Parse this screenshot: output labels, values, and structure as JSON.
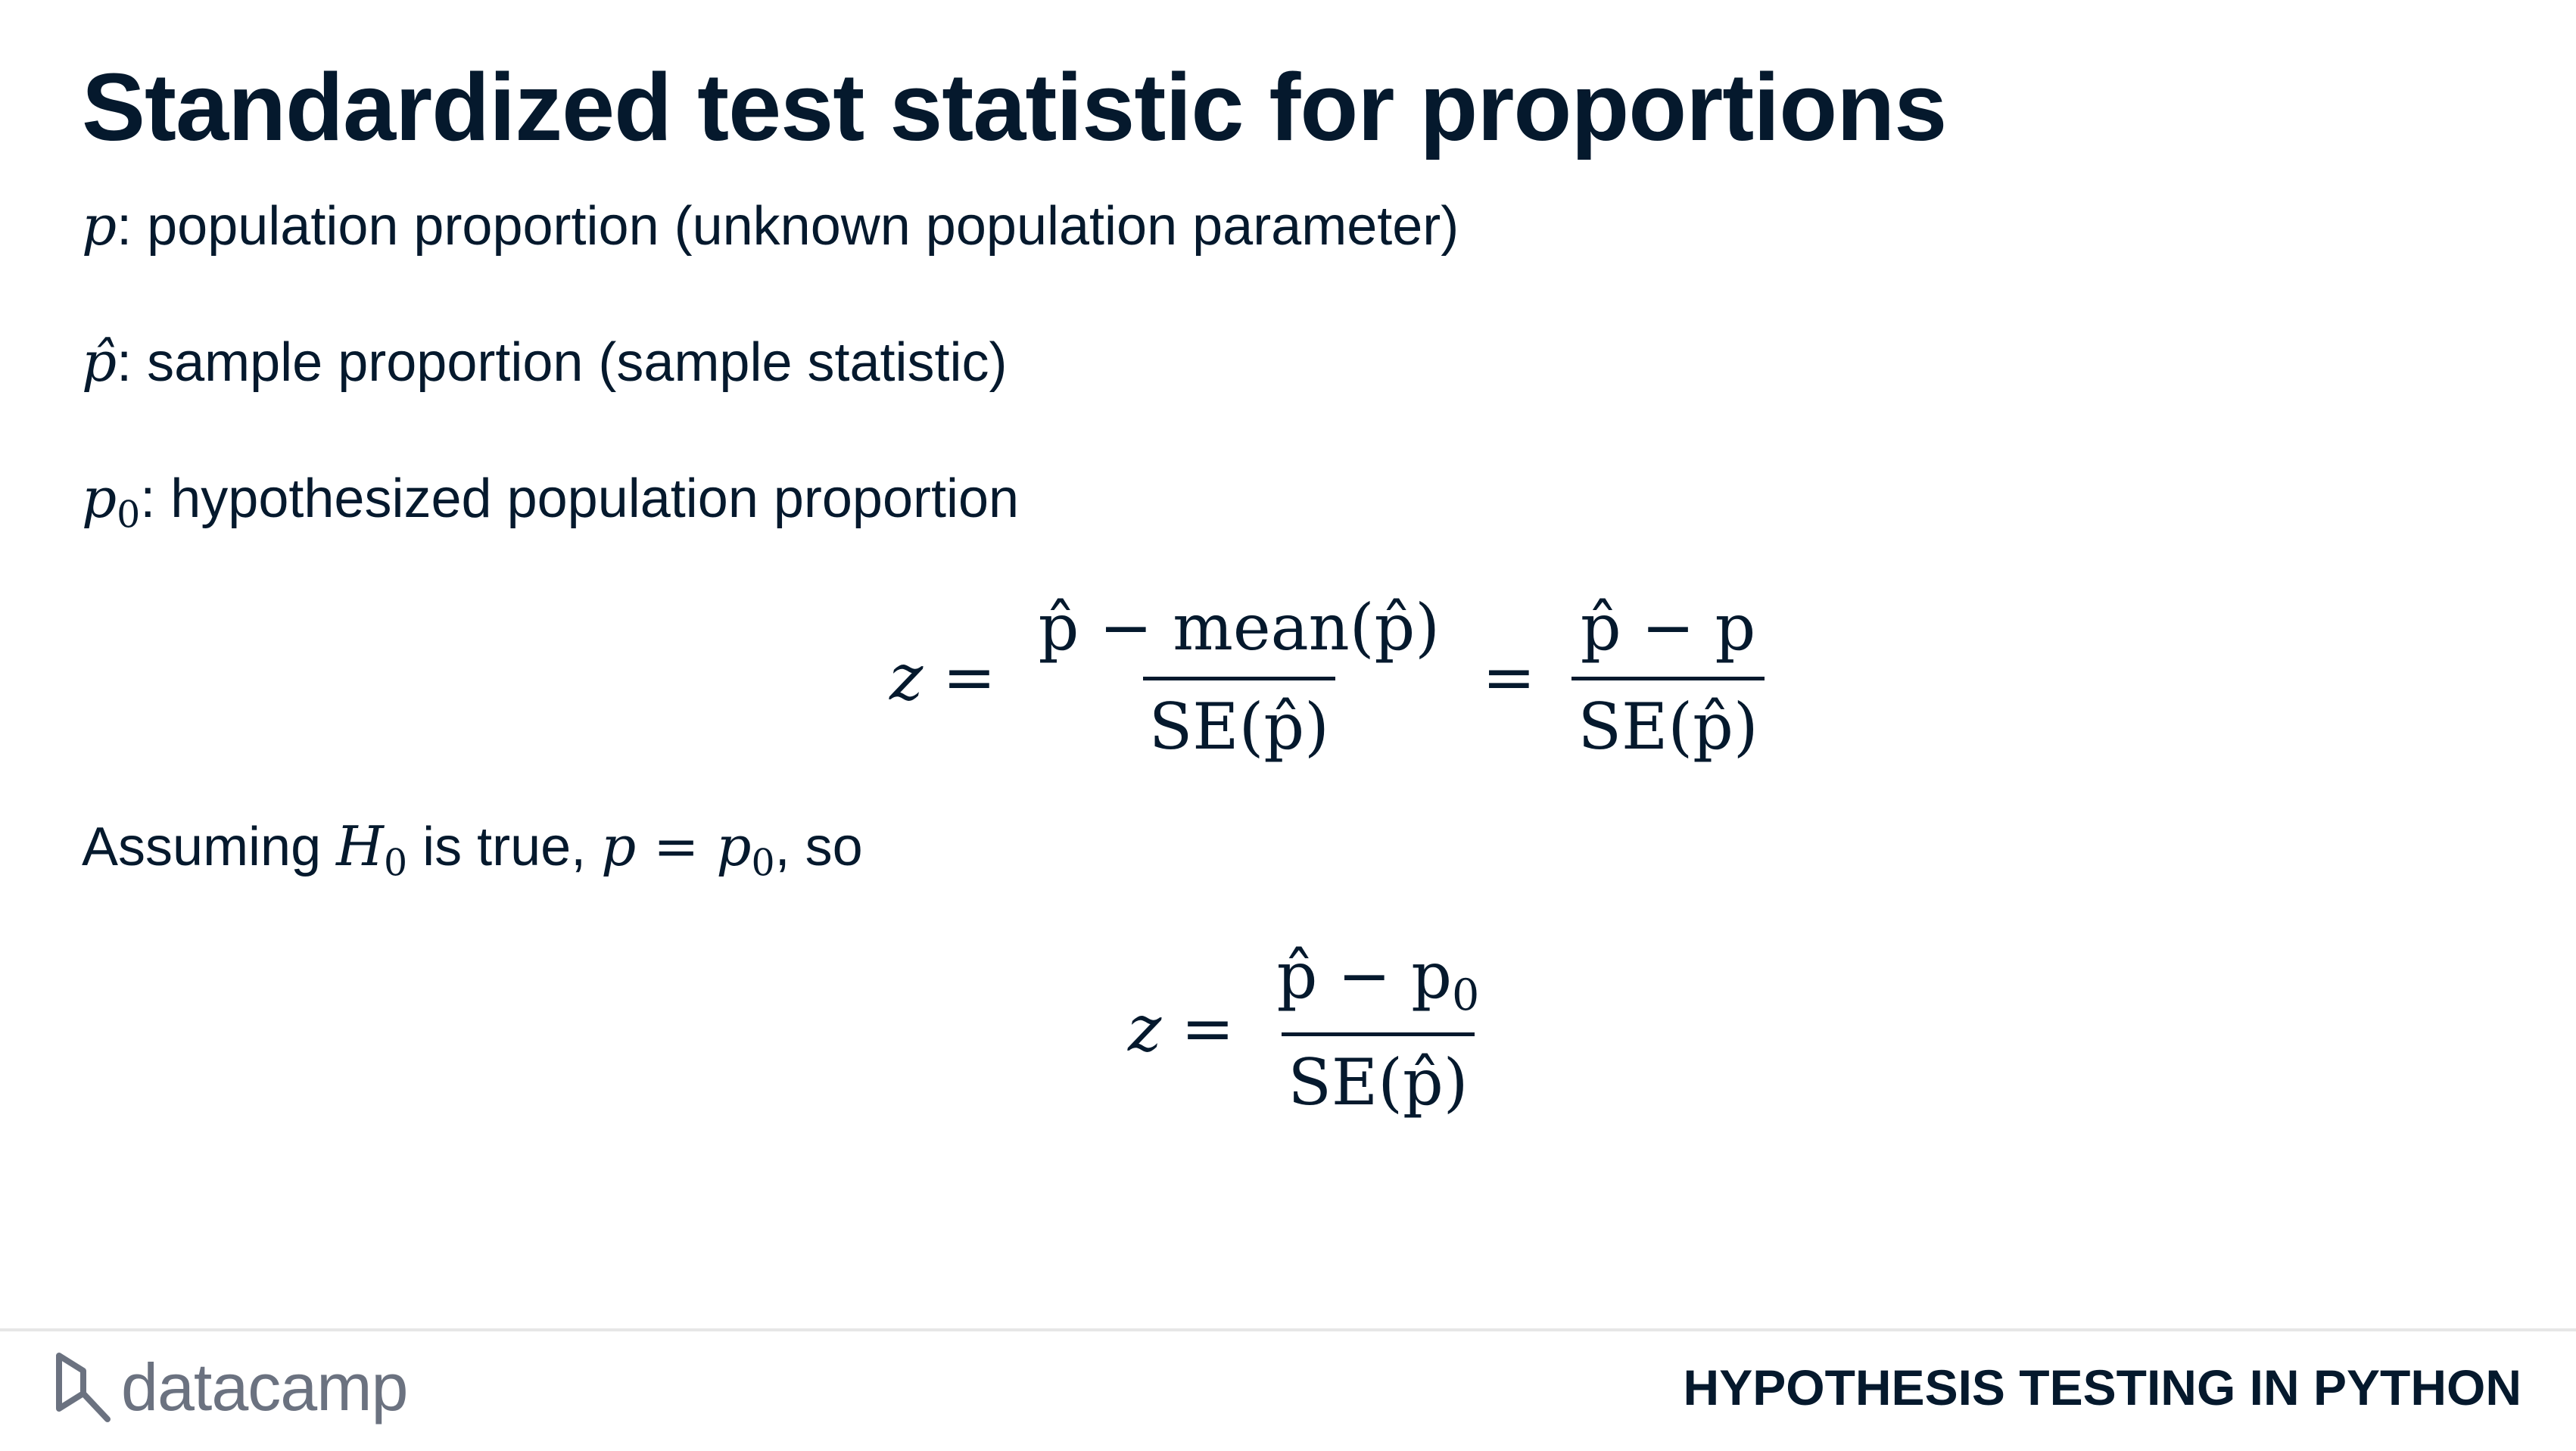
{
  "slide": {
    "title": "Standardized test statistic for proportions",
    "definitions": [
      {
        "symbol": "p",
        "text": ": population proportion (unknown population parameter)"
      },
      {
        "symbol": "p̂",
        "text": ": sample proportion (sample statistic)"
      },
      {
        "symbol": "p",
        "subscript": "0",
        "text": ": hypothesized population proportion"
      }
    ],
    "equation1": {
      "lhs": "z",
      "eq": "=",
      "frac1_num": "p̂ − mean(p̂)",
      "frac1_den": "SE(p̂)",
      "frac2_num": "p̂ − p",
      "frac2_den": "SE(p̂)"
    },
    "assumption": {
      "lead": "Assuming ",
      "h": "H",
      "h_sub": "0",
      "mid": " is true, ",
      "p": "p",
      "eq": " = ",
      "p0": "p",
      "p0_sub": "0",
      "tail": ", so"
    },
    "equation2": {
      "lhs": "z",
      "eq": "=",
      "num": "p̂ − p",
      "num_sub": "0",
      "den": "SE(p̂)"
    }
  },
  "footer": {
    "brand": "datacamp",
    "course": "HYPOTHESIS TESTING IN PYTHON",
    "logo_color": "#6b7280",
    "text_color": "#05192d"
  }
}
